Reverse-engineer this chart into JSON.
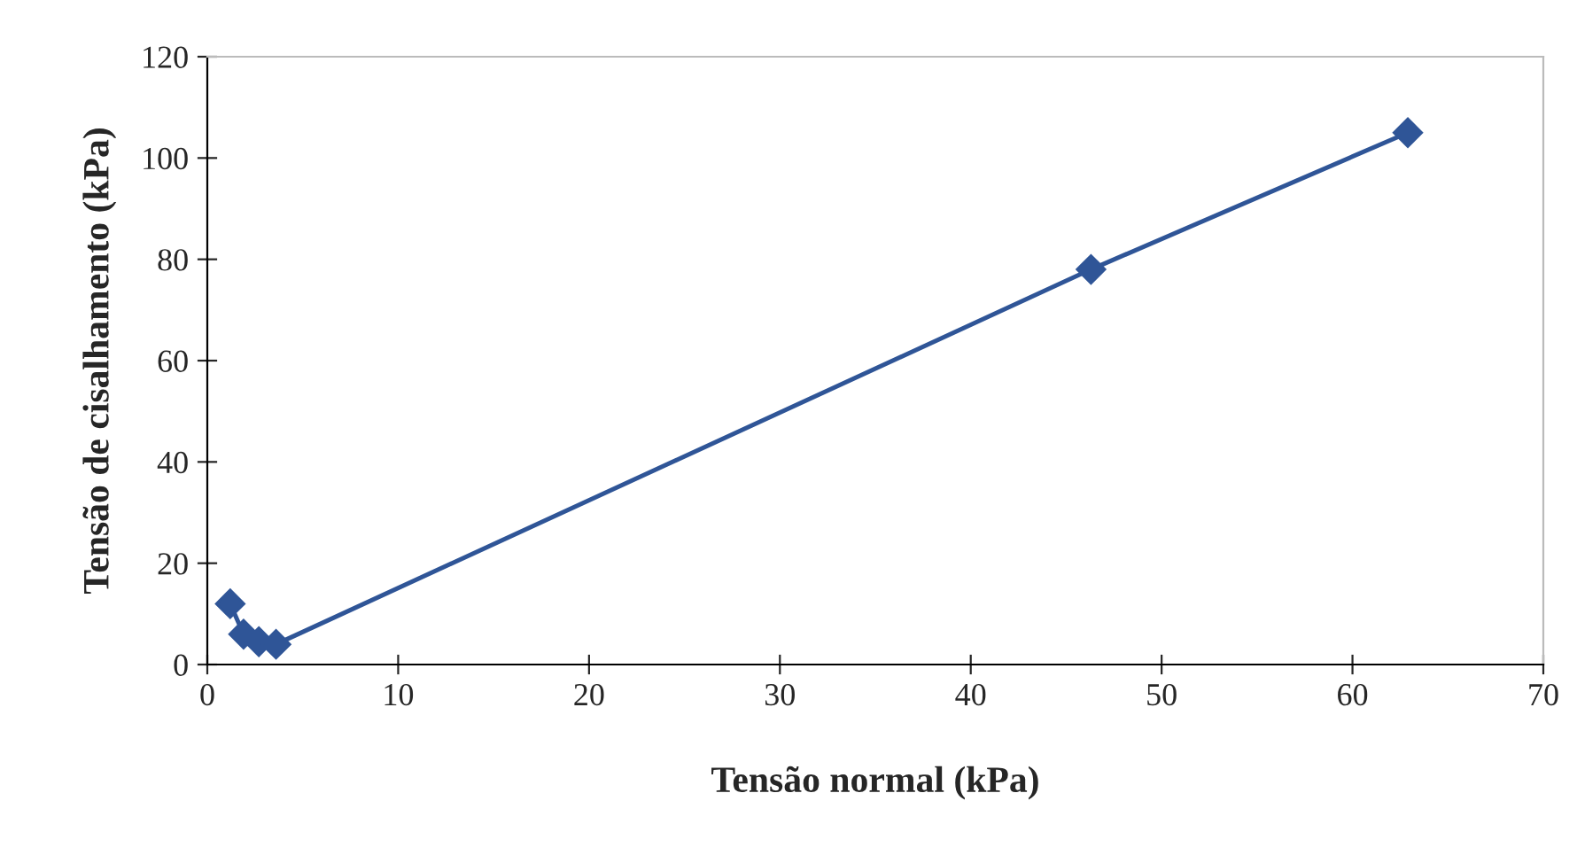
{
  "chart_data": {
    "type": "line",
    "xlabel": "Tensão normal (kPa)",
    "ylabel": "Tensão de cisalhamento (kPa)",
    "x": [
      1.2,
      1.9,
      2.7,
      3.6,
      46.3,
      62.9
    ],
    "series": [
      {
        "color": "#2f5597",
        "values": [
          12,
          6,
          4.5,
          4,
          78,
          105
        ]
      }
    ],
    "xlim": [
      0,
      70
    ],
    "ylim": [
      0,
      120
    ],
    "xticks": [
      0,
      10,
      20,
      30,
      40,
      50,
      60,
      70
    ],
    "yticks": [
      0,
      20,
      40,
      60,
      80,
      100,
      120
    ],
    "marker": "diamond",
    "line_style": "solid",
    "grid": false,
    "legend": false
  }
}
